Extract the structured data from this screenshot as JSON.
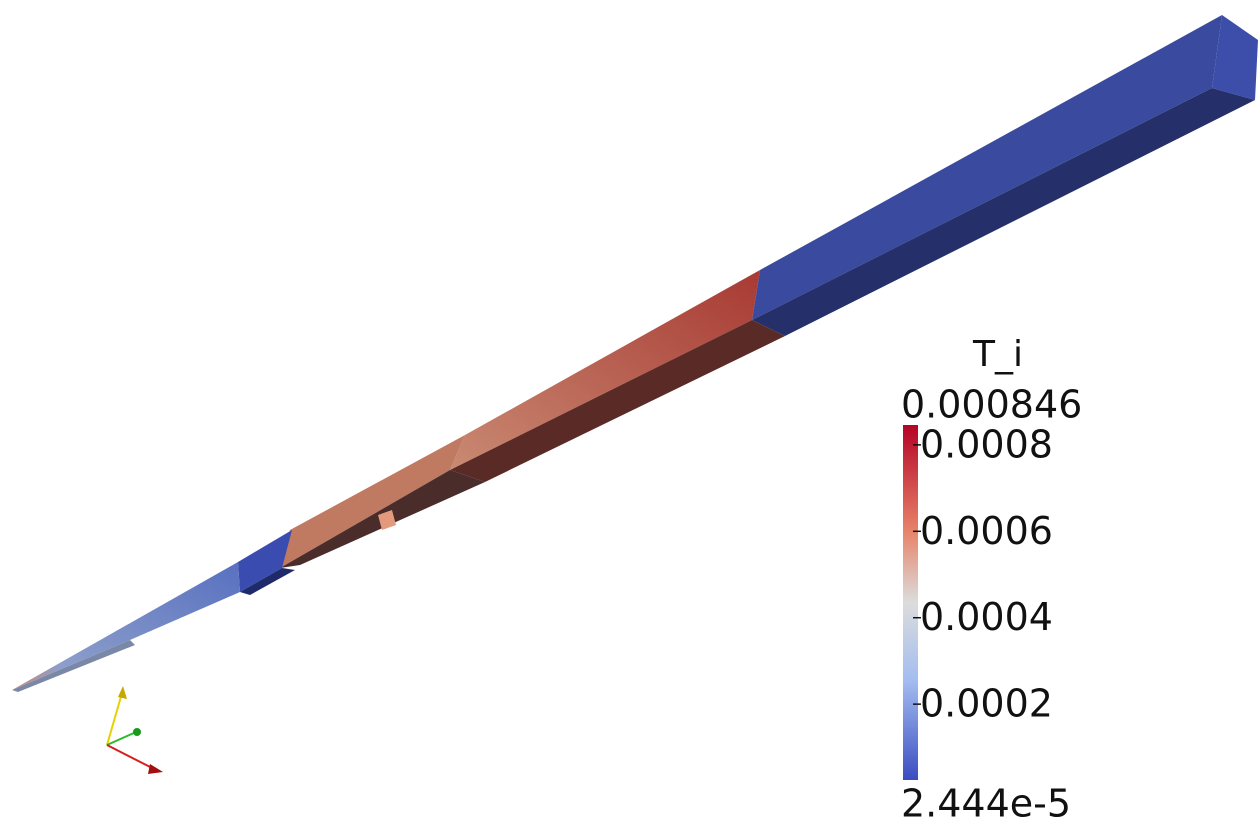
{
  "view": {
    "colorbar": {
      "title": "T_i",
      "max": 0.000846,
      "min": {
        "value": 2.444e-05,
        "label": "2.444e-5"
      },
      "ticks": [
        0.0008,
        0.0006,
        0.0004,
        0.0002
      ]
    }
  }
}
